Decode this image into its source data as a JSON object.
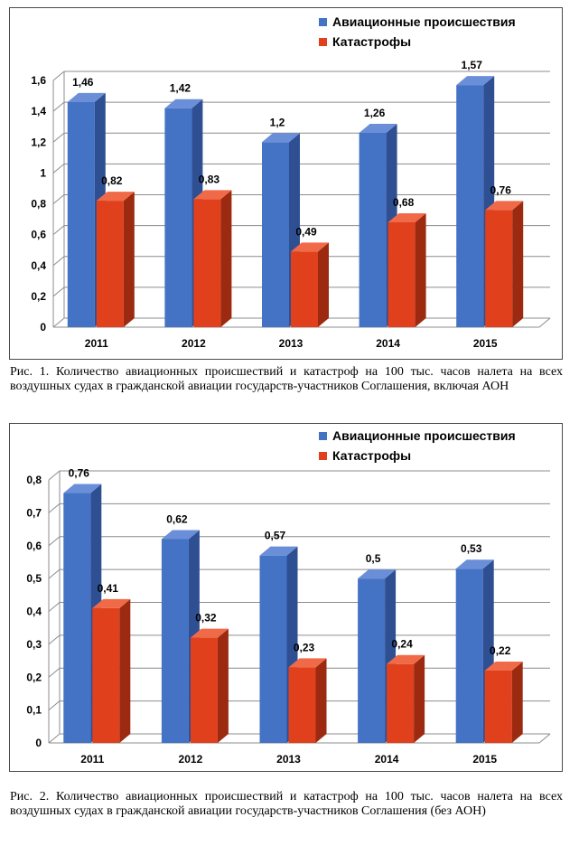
{
  "series_names": [
    "Авиационные происшествия",
    "Катастрофы"
  ],
  "colors": {
    "accidents_front": "#4472c4",
    "accidents_side": "#2f4f93",
    "accidents_top": "#6a8fd8",
    "catastrophes_front": "#e0401c",
    "catastrophes_side": "#9c2a10",
    "catastrophes_top": "#f06a48",
    "grid": "#8c8c8c"
  },
  "chart_data": [
    {
      "type": "bar",
      "categories": [
        "2011",
        "2012",
        "2013",
        "2014",
        "2015"
      ],
      "series": [
        {
          "name": "Авиационные происшествия",
          "values": [
            1.46,
            1.42,
            1.2,
            1.26,
            1.57
          ]
        },
        {
          "name": "Катастрофы",
          "values": [
            0.82,
            0.83,
            0.49,
            0.68,
            0.76
          ]
        }
      ],
      "value_labels": [
        [
          "1,46",
          "1,42",
          "1,2",
          "1,26",
          "1,57"
        ],
        [
          "0,82",
          "0,83",
          "0,49",
          "0,68",
          "0,76"
        ]
      ],
      "yticks": [
        "0",
        "0,2",
        "0,4",
        "0,6",
        "0,8",
        "1",
        "1,2",
        "1,4",
        "1,6"
      ],
      "ylim": [
        0,
        1.6
      ],
      "grid": true,
      "legend": "top-right",
      "3d": true
    },
    {
      "type": "bar",
      "categories": [
        "2011",
        "2012",
        "2013",
        "2014",
        "2015"
      ],
      "series": [
        {
          "name": "Авиационные происшествия",
          "values": [
            0.76,
            0.62,
            0.57,
            0.5,
            0.53
          ]
        },
        {
          "name": "Катастрофы",
          "values": [
            0.41,
            0.32,
            0.23,
            0.24,
            0.22
          ]
        }
      ],
      "value_labels": [
        [
          "0,76",
          "0,62",
          "0,57",
          "0,5",
          "0,53"
        ],
        [
          "0,41",
          "0,32",
          "0,23",
          "0,24",
          "0,22"
        ]
      ],
      "yticks": [
        "0",
        "0,1",
        "0,2",
        "0,3",
        "0,4",
        "0,5",
        "0,6",
        "0,7",
        "0,8"
      ],
      "ylim": [
        0,
        0.8
      ],
      "grid": true,
      "legend": "top-right",
      "3d": true
    }
  ],
  "captions": [
    "Рис. 1. Количество авиационных происшествий и катастроф на 100 тыс. часов налета на всех воздушных судах в гражданской авиации государств-участников Соглашения, включая АОН",
    "Рис. 2. Количество авиационных происшествий и катастроф на 100 тыс. часов налета на всех воздушных судах в гражданской авиации государств-участников Соглашения (без АОН)"
  ]
}
